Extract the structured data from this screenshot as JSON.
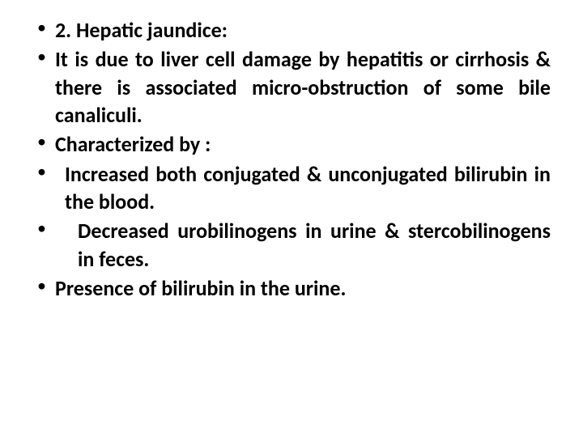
{
  "text_color": "#000000",
  "background_color": "#ffffff",
  "font_size": 26,
  "font_weight": "bold",
  "bullets": [
    {
      "text": "2. Hepatic jaundice:",
      "justify": false,
      "indent": 0
    },
    {
      "text": "It is due to liver cell damage by hepatitis or cirrhosis & there is associated micro-obstruction of some bile canaliculi.",
      "justify": true,
      "indent": 0
    },
    {
      "text": "Characterized by :",
      "justify": false,
      "indent": 0
    },
    {
      "text": "Increased both conjugated & unconjugated bilirubin in the blood.",
      "justify": true,
      "indent": 1
    },
    {
      "text": "Decreased urobilinogens in urine & stercobilinogens in feces.",
      "justify": true,
      "indent": 2
    },
    {
      "text": " Presence of bilirubin in the urine.",
      "justify": false,
      "indent": 0
    }
  ]
}
